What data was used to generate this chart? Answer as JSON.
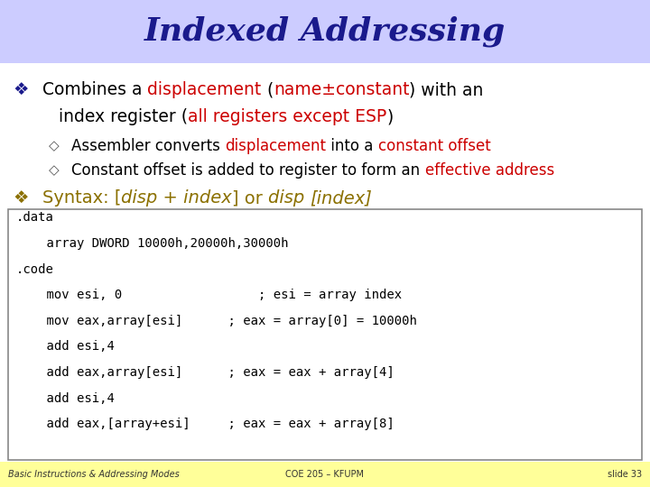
{
  "title": "Indexed Addressing",
  "title_color": "#1a1a8c",
  "title_bg": "#ccccff",
  "bg_color": "#ffffff",
  "footer_bg": "#ffff99",
  "code_lines": [
    ".data",
    "    array DWORD 10000h,20000h,30000h",
    ".code",
    "    mov esi, 0                  ; esi = array index",
    "    mov eax,array[esi]      ; eax = array[0] = 10000h",
    "    add esi,4",
    "    add eax,array[esi]      ; eax = eax + array[4]",
    "    add esi,4",
    "    add eax,[array+esi]     ; eax = eax + array[8]"
  ],
  "footer_left": "Basic Instructions & Addressing Modes",
  "footer_center": "COE 205 – KFUPM",
  "footer_right": "slide 33"
}
